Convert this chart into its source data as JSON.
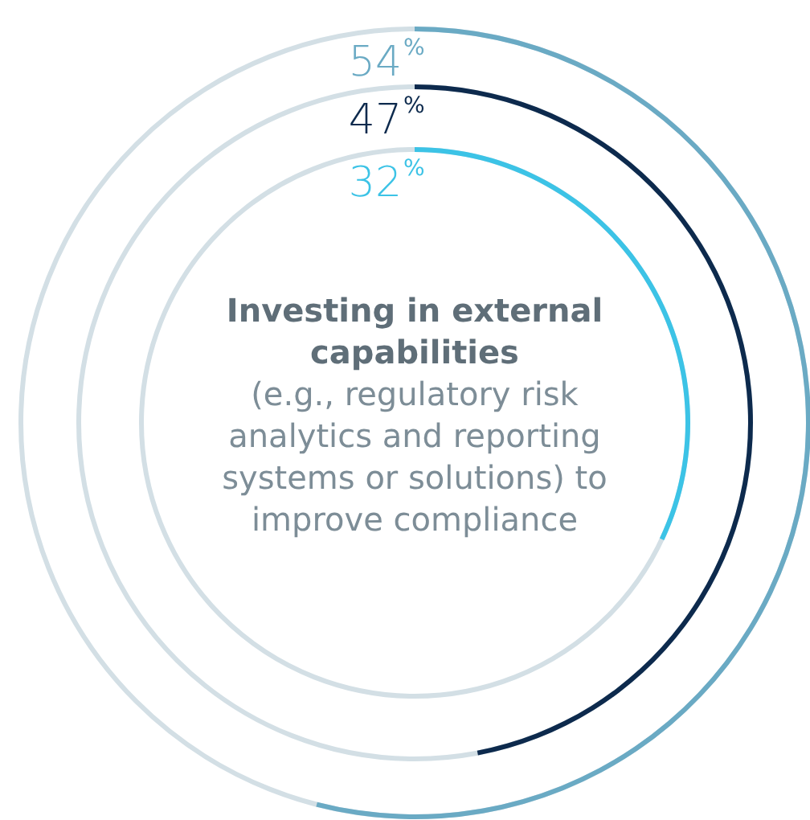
{
  "chart_data": {
    "type": "other",
    "title": "Investing in external capabilities",
    "subtitle": "(e.g., regulatory risk analytics and reporting systems or solutions) to improve compliance",
    "categories": [
      null,
      null,
      null
    ],
    "values": [
      54,
      47,
      32
    ],
    "value_labels": [
      "54%",
      "47%",
      "32%"
    ],
    "colors": [
      "#6aaac4",
      "#0d2a4d",
      "#3cc3e6"
    ]
  }
}
